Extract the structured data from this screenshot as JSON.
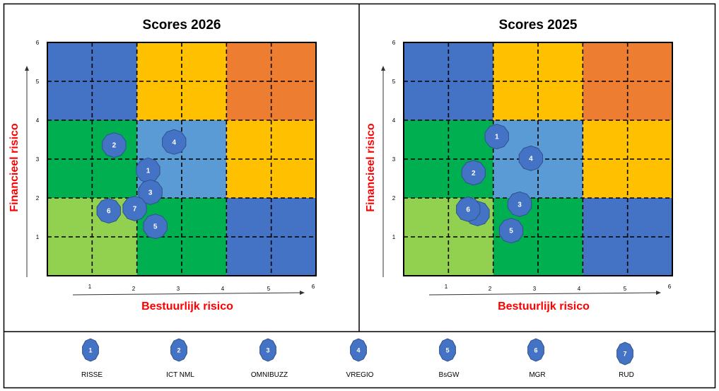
{
  "colors": {
    "blue": "#4472C4",
    "yellow": "#FFC000",
    "orange": "#ED7D31",
    "green": "#00B050",
    "lightblue": "#5B9BD5",
    "lightgreen": "#92D050",
    "marker": "#4472C4",
    "marker_stroke": "#2F528F",
    "axis_label": "#FF0000"
  },
  "zones": [
    [
      "blue",
      "yellow",
      "orange"
    ],
    [
      "green",
      "lightblue",
      "yellow"
    ],
    [
      "lightgreen",
      "green",
      "blue"
    ]
  ],
  "chart_data": [
    {
      "type": "scatter",
      "title": "Scores 2026",
      "xlabel": "Bestuurlijk risico",
      "ylabel": "Financieel risico",
      "xlim": [
        0,
        6
      ],
      "ylim": [
        0,
        6
      ],
      "xticks": [
        "1",
        "2",
        "3",
        "4",
        "5",
        "6"
      ],
      "yticks": [
        "1",
        "2",
        "3",
        "4",
        "5",
        "6"
      ],
      "grid": true,
      "points": [
        {
          "id": "1",
          "x": 2.25,
          "y": 2.71
        },
        {
          "id": "2",
          "x": 1.49,
          "y": 3.36
        },
        {
          "id": "3",
          "x": 2.3,
          "y": 2.15
        },
        {
          "id": "4",
          "x": 2.83,
          "y": 3.44
        },
        {
          "id": "5",
          "x": 2.41,
          "y": 1.27
        },
        {
          "id": "6",
          "x": 1.37,
          "y": 1.67
        },
        {
          "id": "7",
          "x": 1.95,
          "y": 1.73
        }
      ]
    },
    {
      "type": "scatter",
      "title": "Scores 2025",
      "xlabel": "Bestuurlijk risico",
      "ylabel": "Financieel risico",
      "xlim": [
        0,
        6
      ],
      "ylim": [
        0,
        6
      ],
      "xticks": [
        "1",
        "2",
        "3",
        "4",
        "5",
        "6"
      ],
      "yticks": [
        "1",
        "2",
        "3",
        "4",
        "5",
        "6"
      ],
      "grid": true,
      "points": [
        {
          "id": "7",
          "x": 1.65,
          "y": 1.6
        },
        {
          "id": "1",
          "x": 2.08,
          "y": 3.58
        },
        {
          "id": "2",
          "x": 1.56,
          "y": 2.65
        },
        {
          "id": "3",
          "x": 2.59,
          "y": 1.84
        },
        {
          "id": "4",
          "x": 2.84,
          "y": 3.02
        },
        {
          "id": "5",
          "x": 2.4,
          "y": 1.16
        },
        {
          "id": "6",
          "x": 1.44,
          "y": 1.71
        }
      ]
    }
  ],
  "legend": [
    {
      "id": "1",
      "label": "RISSE"
    },
    {
      "id": "2",
      "label": "ICT NML"
    },
    {
      "id": "3",
      "label": "OMNIBUZZ"
    },
    {
      "id": "4",
      "label": "VREGIO"
    },
    {
      "id": "5",
      "label": "BsGW"
    },
    {
      "id": "6",
      "label": "MGR"
    },
    {
      "id": "7",
      "label": "RUD"
    }
  ]
}
